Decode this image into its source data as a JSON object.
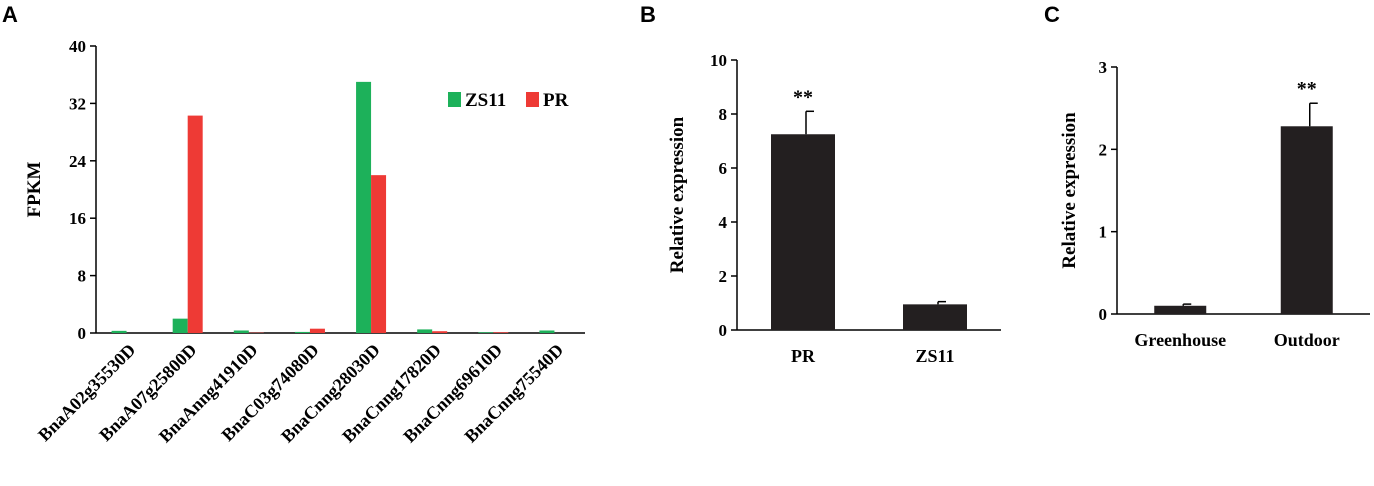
{
  "panels": [
    "A",
    "B",
    "C"
  ],
  "colors": {
    "zs11": "#1db15a",
    "pr": "#ee3a35",
    "bar": "#231f20"
  },
  "chart_data": [
    {
      "panel": "A",
      "type": "bar",
      "ylabel": "FPKM",
      "xlabel": "",
      "ylim": [
        0,
        40
      ],
      "yticks": [
        "0",
        "8",
        "16",
        "24",
        "32",
        "40"
      ],
      "legend_position": "top-right",
      "categories": [
        "BnaA02g35530D",
        "BnaA07g25800D",
        "BnaAnng41910D",
        "BnaC03g74080D",
        "BnaCnng28030D",
        "BnaCnng17820D",
        "BnaCnng69610D",
        "BnaCnng75540D"
      ],
      "series": [
        {
          "name": "ZS11",
          "color": "#1db15a",
          "values": [
            0.3,
            2.0,
            0.35,
            0.15,
            35.0,
            0.5,
            0.1,
            0.35
          ]
        },
        {
          "name": "PR",
          "color": "#ee3a35",
          "values": [
            0.0,
            30.3,
            0.05,
            0.6,
            22.0,
            0.25,
            0.1,
            0.0
          ]
        }
      ]
    },
    {
      "panel": "B",
      "type": "bar",
      "ylabel": "Relative expression",
      "xlabel": "",
      "ylim": [
        0,
        10
      ],
      "yticks": [
        "0",
        "2",
        "4",
        "6",
        "8",
        "10"
      ],
      "categories": [
        "PR",
        "ZS11"
      ],
      "values": [
        7.25,
        0.95
      ],
      "errors": [
        0.85,
        0.1
      ],
      "annotations": [
        "**",
        ""
      ]
    },
    {
      "panel": "C",
      "type": "bar",
      "ylabel": "Relative expression",
      "xlabel": "",
      "ylim": [
        0,
        3
      ],
      "yticks": [
        "0",
        "1",
        "2",
        "3"
      ],
      "categories": [
        "Greenhouse",
        "Outdoor"
      ],
      "values": [
        0.1,
        2.28
      ],
      "errors": [
        0.02,
        0.28
      ],
      "annotations": [
        "",
        "**"
      ]
    }
  ]
}
